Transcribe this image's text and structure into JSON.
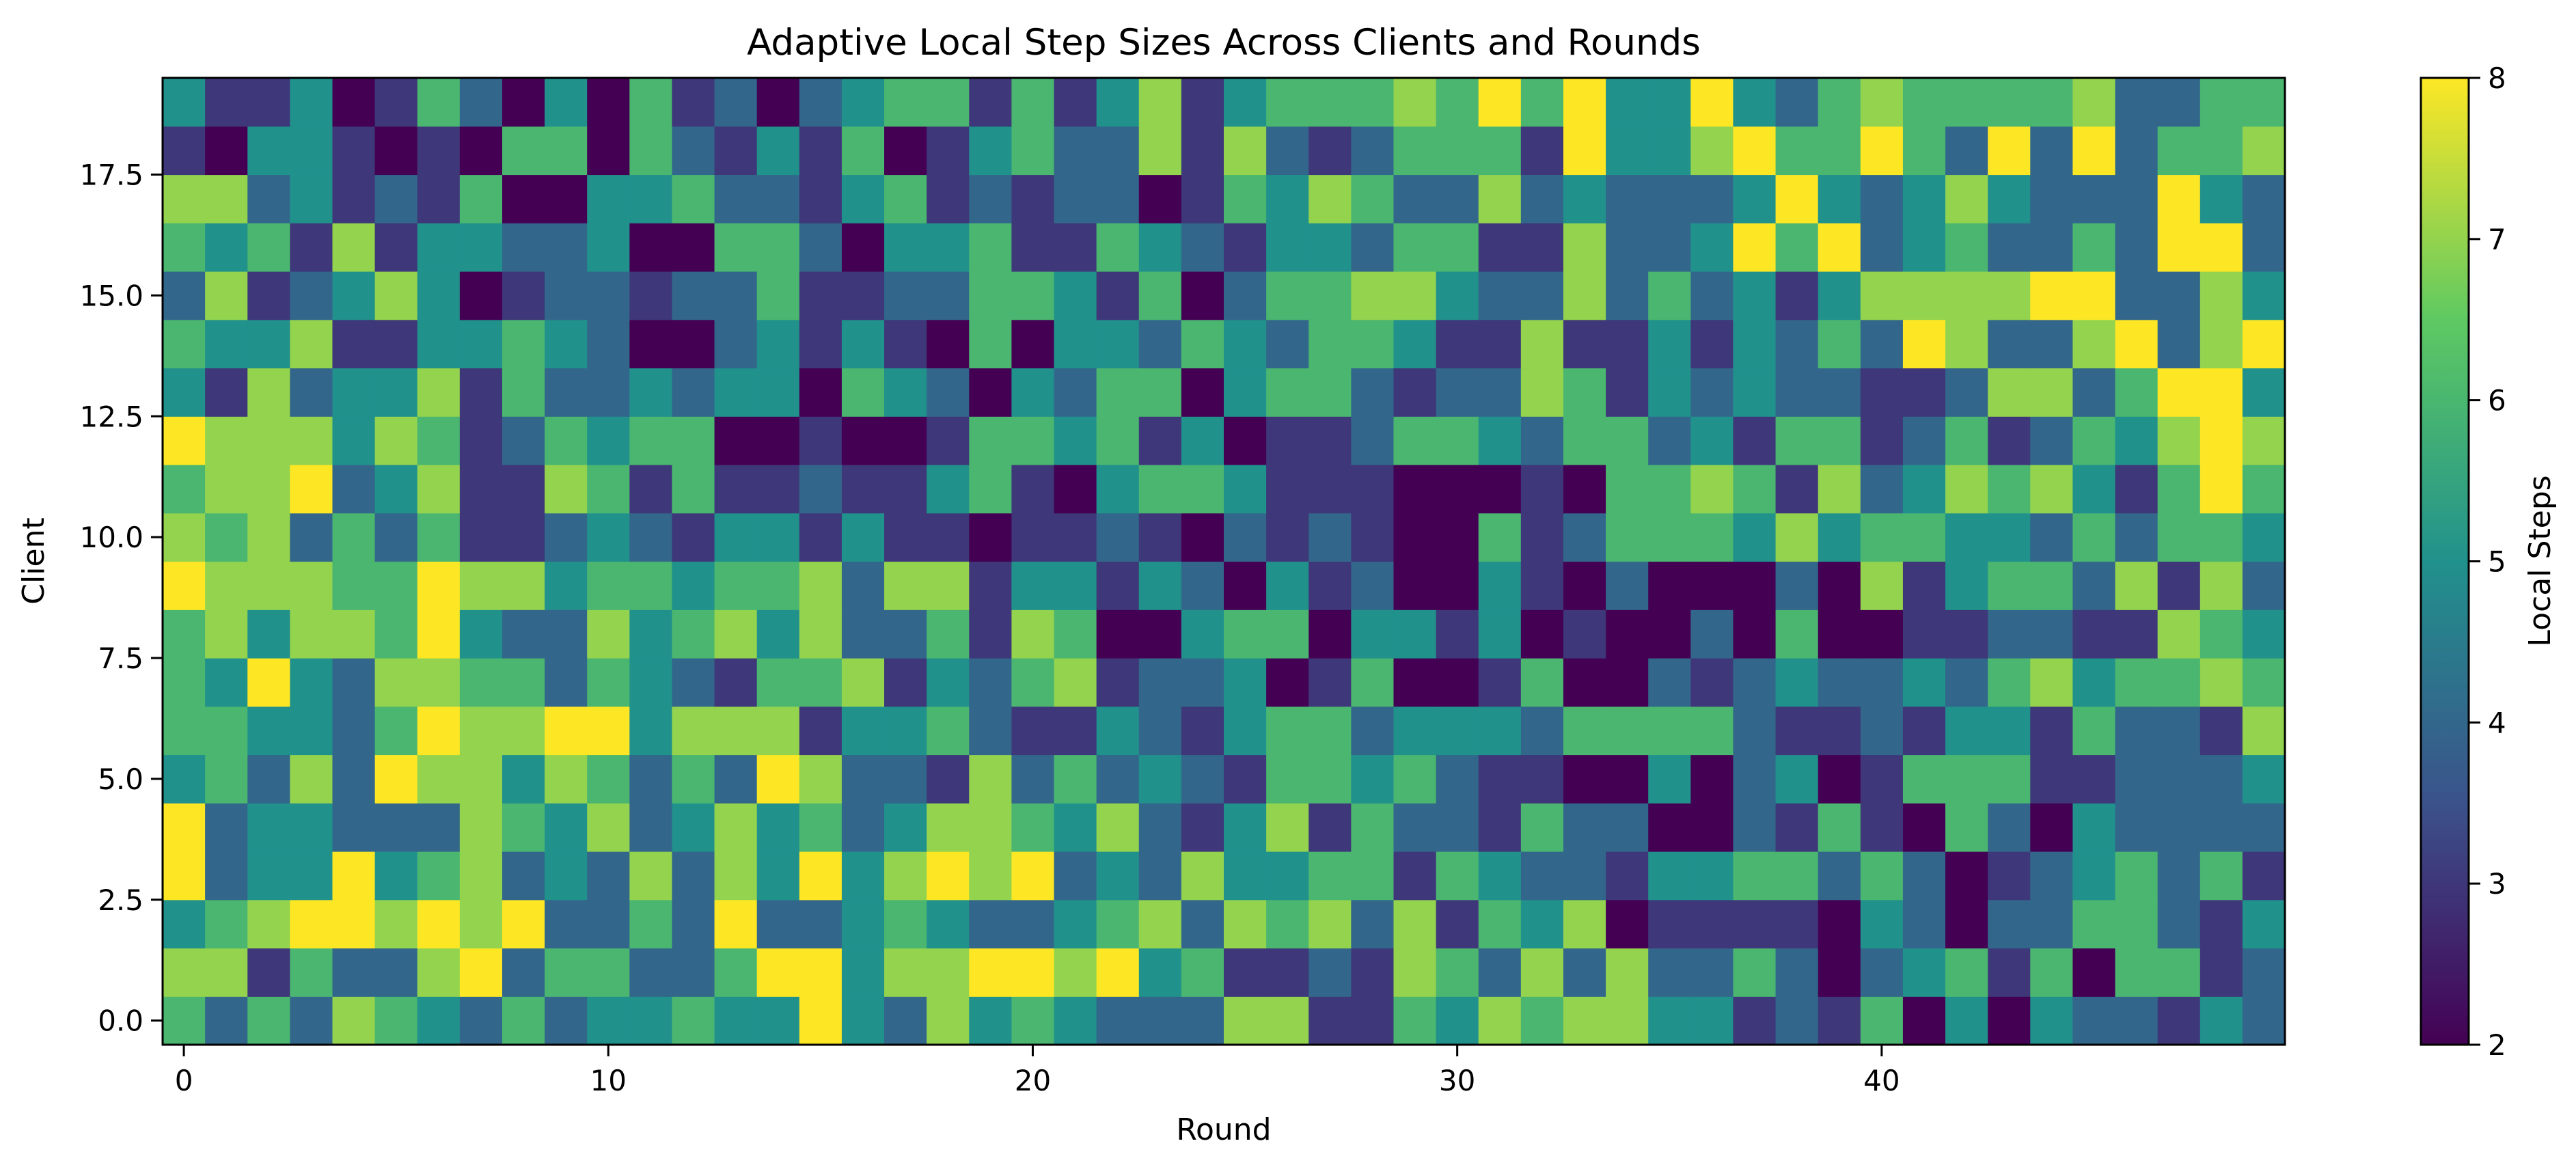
{
  "chart_data": {
    "type": "heatmap",
    "title": "Adaptive Local Step Sizes Across Clients and Rounds",
    "xlabel": "Round",
    "ylabel": "Client",
    "colorbar_label": "Local Steps",
    "colormap": "viridis",
    "colormap_stops": [
      "#440154",
      "#3b528b",
      "#21918c",
      "#5ec962",
      "#fde725"
    ],
    "n_rounds": 50,
    "n_clients": 20,
    "xlim": [
      -0.5,
      49.5
    ],
    "ylim": [
      -0.5,
      19.5
    ],
    "value_range": [
      2,
      8
    ],
    "x_ticks": [
      0,
      10,
      20,
      30,
      40
    ],
    "x_tick_labels": [
      "0",
      "10",
      "20",
      "30",
      "40"
    ],
    "y_ticks": [
      0,
      2.5,
      5,
      7.5,
      10,
      12.5,
      15,
      17.5
    ],
    "y_tick_labels": [
      "0.0",
      "2.5",
      "5.0",
      "7.5",
      "10.0",
      "12.5",
      "15.0",
      "17.5"
    ],
    "colorbar_ticks": [
      2,
      3,
      4,
      5,
      6,
      7,
      8
    ],
    "colorbar_tick_labels": [
      "2",
      "3",
      "4",
      "5",
      "6",
      "7",
      "8"
    ],
    "grid": false,
    "values_by_client": [
      [
        6,
        4,
        6,
        4,
        7,
        6,
        5,
        4,
        6,
        4,
        5,
        5,
        6,
        5,
        5,
        8,
        5,
        4,
        7,
        5,
        6,
        5,
        4,
        4,
        4,
        7,
        7,
        3,
        3,
        6,
        5,
        7,
        6,
        7,
        7,
        5,
        5,
        3,
        4,
        3,
        6,
        2,
        5,
        2,
        5,
        4,
        4,
        3,
        5,
        4
      ],
      [
        7,
        7,
        3,
        6,
        4,
        4,
        7,
        8,
        4,
        6,
        6,
        4,
        4,
        6,
        8,
        8,
        5,
        7,
        7,
        8,
        8,
        7,
        8,
        5,
        6,
        3,
        3,
        4,
        3,
        7,
        6,
        4,
        7,
        4,
        7,
        4,
        4,
        6,
        4,
        2,
        4,
        5,
        6,
        3,
        6,
        2,
        6,
        6,
        3,
        4
      ],
      [
        5,
        6,
        7,
        8,
        8,
        7,
        8,
        7,
        8,
        4,
        4,
        6,
        4,
        8,
        4,
        4,
        5,
        6,
        5,
        4,
        4,
        5,
        6,
        7,
        4,
        7,
        6,
        7,
        4,
        7,
        3,
        6,
        5,
        7,
        2,
        3,
        3,
        3,
        3,
        2,
        5,
        4,
        2,
        4,
        4,
        6,
        6,
        4,
        3,
        5
      ],
      [
        8,
        4,
        5,
        5,
        8,
        5,
        6,
        7,
        4,
        5,
        4,
        7,
        4,
        7,
        5,
        8,
        5,
        7,
        8,
        7,
        8,
        4,
        5,
        4,
        7,
        5,
        5,
        6,
        6,
        3,
        6,
        5,
        4,
        4,
        3,
        5,
        5,
        6,
        6,
        4,
        6,
        4,
        2,
        3,
        4,
        5,
        6,
        4,
        6,
        3
      ],
      [
        8,
        4,
        5,
        5,
        4,
        4,
        4,
        7,
        6,
        5,
        7,
        4,
        5,
        7,
        5,
        6,
        4,
        5,
        7,
        7,
        6,
        5,
        7,
        4,
        3,
        5,
        7,
        3,
        6,
        4,
        4,
        3,
        6,
        4,
        4,
        2,
        2,
        4,
        3,
        6,
        3,
        2,
        6,
        4,
        2,
        5,
        4,
        4,
        4,
        4
      ],
      [
        5,
        6,
        4,
        7,
        4,
        8,
        7,
        7,
        5,
        7,
        6,
        4,
        6,
        4,
        8,
        7,
        4,
        4,
        3,
        7,
        4,
        6,
        4,
        5,
        4,
        3,
        6,
        6,
        5,
        6,
        4,
        3,
        3,
        2,
        2,
        5,
        2,
        4,
        5,
        2,
        3,
        6,
        6,
        6,
        3,
        3,
        4,
        4,
        4,
        5
      ],
      [
        6,
        6,
        5,
        5,
        4,
        6,
        8,
        7,
        7,
        8,
        8,
        5,
        7,
        7,
        7,
        3,
        5,
        5,
        6,
        4,
        3,
        3,
        5,
        4,
        3,
        5,
        6,
        6,
        4,
        5,
        5,
        5,
        4,
        6,
        6,
        6,
        6,
        4,
        3,
        3,
        4,
        3,
        5,
        5,
        3,
        6,
        4,
        4,
        3,
        7
      ],
      [
        6,
        5,
        8,
        5,
        4,
        7,
        7,
        6,
        6,
        4,
        6,
        5,
        4,
        3,
        6,
        6,
        7,
        3,
        5,
        4,
        6,
        7,
        3,
        4,
        4,
        5,
        2,
        3,
        6,
        2,
        2,
        3,
        6,
        2,
        2,
        4,
        3,
        4,
        5,
        4,
        4,
        5,
        4,
        6,
        7,
        5,
        6,
        6,
        7,
        6
      ],
      [
        6,
        7,
        5,
        7,
        7,
        6,
        8,
        5,
        4,
        4,
        7,
        5,
        6,
        7,
        5,
        7,
        4,
        4,
        6,
        3,
        7,
        6,
        2,
        2,
        5,
        6,
        6,
        2,
        5,
        5,
        3,
        5,
        2,
        3,
        2,
        2,
        4,
        2,
        6,
        2,
        2,
        3,
        3,
        4,
        4,
        3,
        3,
        7,
        6,
        5
      ],
      [
        8,
        7,
        7,
        7,
        6,
        6,
        8,
        7,
        7,
        5,
        6,
        6,
        5,
        6,
        6,
        7,
        4,
        7,
        7,
        3,
        5,
        5,
        3,
        5,
        4,
        2,
        5,
        3,
        4,
        2,
        2,
        5,
        3,
        2,
        4,
        2,
        2,
        2,
        4,
        2,
        7,
        3,
        5,
        6,
        6,
        4,
        7,
        3,
        7,
        4
      ],
      [
        7,
        6,
        7,
        4,
        6,
        4,
        6,
        3,
        3,
        4,
        5,
        4,
        3,
        5,
        5,
        3,
        5,
        3,
        3,
        2,
        3,
        3,
        4,
        3,
        2,
        4,
        3,
        4,
        3,
        2,
        2,
        6,
        3,
        4,
        6,
        6,
        6,
        5,
        7,
        5,
        6,
        6,
        5,
        5,
        4,
        6,
        4,
        6,
        6,
        5
      ],
      [
        6,
        7,
        7,
        8,
        4,
        5,
        7,
        3,
        3,
        7,
        6,
        3,
        6,
        3,
        3,
        4,
        3,
        3,
        5,
        6,
        3,
        2,
        5,
        6,
        6,
        5,
        3,
        3,
        3,
        2,
        2,
        2,
        3,
        2,
        6,
        6,
        7,
        6,
        3,
        7,
        4,
        5,
        7,
        6,
        7,
        5,
        3,
        6,
        8,
        6
      ],
      [
        8,
        7,
        7,
        7,
        5,
        7,
        6,
        3,
        4,
        6,
        5,
        6,
        6,
        2,
        2,
        3,
        2,
        2,
        3,
        6,
        6,
        5,
        6,
        3,
        5,
        2,
        3,
        3,
        4,
        6,
        6,
        5,
        4,
        6,
        6,
        4,
        5,
        3,
        6,
        6,
        3,
        4,
        6,
        3,
        4,
        6,
        5,
        7,
        8,
        7
      ],
      [
        5,
        3,
        7,
        4,
        5,
        5,
        7,
        3,
        6,
        4,
        4,
        5,
        4,
        5,
        5,
        2,
        6,
        5,
        4,
        2,
        5,
        4,
        6,
        6,
        2,
        5,
        6,
        6,
        4,
        3,
        4,
        4,
        7,
        6,
        3,
        5,
        4,
        5,
        4,
        4,
        3,
        3,
        4,
        7,
        7,
        4,
        6,
        8,
        8,
        5
      ],
      [
        6,
        5,
        5,
        7,
        3,
        3,
        5,
        5,
        6,
        5,
        4,
        2,
        2,
        4,
        5,
        3,
        5,
        3,
        2,
        6,
        2,
        5,
        5,
        4,
        6,
        5,
        4,
        6,
        6,
        5,
        3,
        3,
        7,
        3,
        3,
        5,
        3,
        5,
        4,
        6,
        4,
        8,
        7,
        4,
        4,
        7,
        8,
        4,
        7,
        8
      ],
      [
        4,
        7,
        3,
        4,
        5,
        7,
        5,
        2,
        3,
        4,
        4,
        3,
        4,
        4,
        6,
        3,
        3,
        4,
        4,
        6,
        6,
        5,
        3,
        6,
        2,
        4,
        6,
        6,
        7,
        7,
        5,
        4,
        4,
        7,
        4,
        6,
        4,
        5,
        3,
        5,
        7,
        7,
        7,
        7,
        8,
        8,
        4,
        4,
        7,
        5
      ],
      [
        6,
        5,
        6,
        3,
        7,
        3,
        5,
        5,
        4,
        4,
        5,
        2,
        2,
        6,
        6,
        4,
        2,
        5,
        5,
        6,
        3,
        3,
        6,
        5,
        4,
        3,
        5,
        5,
        4,
        6,
        6,
        3,
        3,
        7,
        4,
        4,
        5,
        8,
        6,
        8,
        4,
        5,
        6,
        4,
        4,
        6,
        4,
        8,
        8,
        4
      ],
      [
        7,
        7,
        4,
        5,
        3,
        4,
        3,
        6,
        2,
        2,
        5,
        5,
        6,
        4,
        4,
        3,
        5,
        6,
        3,
        4,
        3,
        4,
        4,
        2,
        3,
        6,
        5,
        7,
        6,
        4,
        4,
        7,
        4,
        5,
        4,
        4,
        4,
        5,
        8,
        5,
        4,
        5,
        7,
        5,
        4,
        4,
        4,
        8,
        5,
        4
      ],
      [
        3,
        2,
        5,
        5,
        3,
        2,
        3,
        2,
        6,
        6,
        2,
        6,
        4,
        3,
        5,
        3,
        6,
        2,
        3,
        5,
        6,
        4,
        4,
        7,
        3,
        7,
        4,
        3,
        4,
        6,
        6,
        6,
        3,
        8,
        5,
        5,
        7,
        8,
        6,
        6,
        8,
        6,
        4,
        8,
        4,
        8,
        4,
        6,
        6,
        7
      ],
      [
        5,
        3,
        3,
        5,
        2,
        3,
        6,
        4,
        2,
        5,
        2,
        6,
        3,
        4,
        2,
        4,
        5,
        6,
        6,
        3,
        6,
        3,
        5,
        7,
        3,
        5,
        6,
        6,
        6,
        7,
        6,
        8,
        6,
        8,
        5,
        5,
        8,
        5,
        4,
        6,
        7,
        6,
        6,
        6,
        6,
        7,
        4,
        4,
        6,
        6
      ]
    ]
  }
}
